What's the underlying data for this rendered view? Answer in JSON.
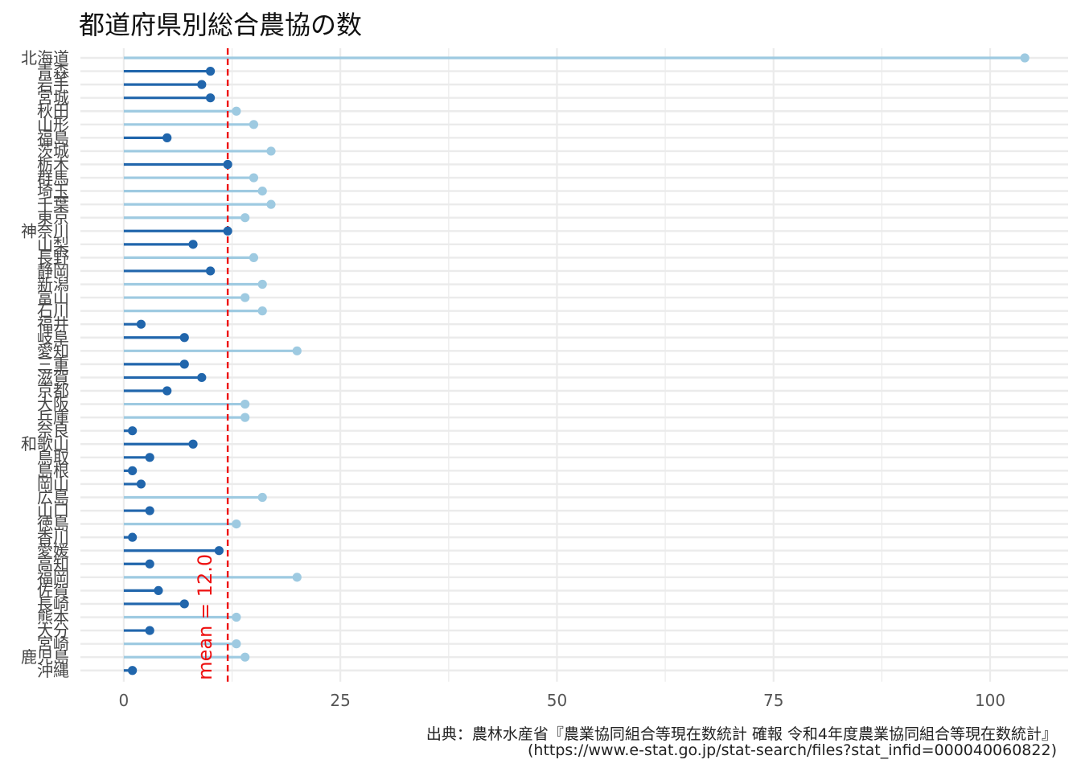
{
  "title": "都道府県別総合農協の数",
  "caption": {
    "line1": "出典：農林水産省『農業協同組合等現在数統計 確報 令和4年度農業協同組合等現在数統計』",
    "line2": "(https://www.e-stat.go.jp/stat-search/files?stat_infid=000040060822)"
  },
  "colors": {
    "above_mean": "#9ecae1",
    "below_mean": "#2166ac",
    "mean_line": "#ee1111",
    "grid": "#ebebeb"
  },
  "chart_data": {
    "type": "lollipop",
    "orientation": "horizontal",
    "categories": [
      "北海道",
      "青森",
      "岩手",
      "宮城",
      "秋田",
      "山形",
      "福島",
      "茨城",
      "栃木",
      "群馬",
      "埼玉",
      "千葉",
      "東京",
      "神奈川",
      "山梨",
      "長野",
      "静岡",
      "新潟",
      "富山",
      "石川",
      "福井",
      "岐阜",
      "愛知",
      "三重",
      "滋賀",
      "京都",
      "大阪",
      "兵庫",
      "奈良",
      "和歌山",
      "鳥取",
      "島根",
      "岡山",
      "広島",
      "山口",
      "徳島",
      "香川",
      "愛媛",
      "高知",
      "福岡",
      "佐賀",
      "長崎",
      "熊本",
      "大分",
      "宮崎",
      "鹿児島",
      "沖縄"
    ],
    "values": [
      104,
      10,
      9,
      10,
      13,
      15,
      5,
      17,
      12,
      15,
      16,
      17,
      14,
      12,
      8,
      15,
      10,
      16,
      14,
      16,
      2,
      7,
      20,
      7,
      9,
      5,
      14,
      14,
      1,
      8,
      3,
      1,
      2,
      16,
      3,
      13,
      1,
      11,
      3,
      20,
      4,
      7,
      13,
      3,
      13,
      14,
      1
    ],
    "mean": 12.0,
    "mean_label": "mean = 12.0",
    "xlim": [
      -5,
      109
    ],
    "x_ticks": [
      0,
      25,
      50,
      75,
      100
    ],
    "x_tick_labels": [
      "0",
      "25",
      "50",
      "75",
      "100"
    ],
    "xlabel": "",
    "ylabel": "",
    "grid": true,
    "legend": "none"
  }
}
